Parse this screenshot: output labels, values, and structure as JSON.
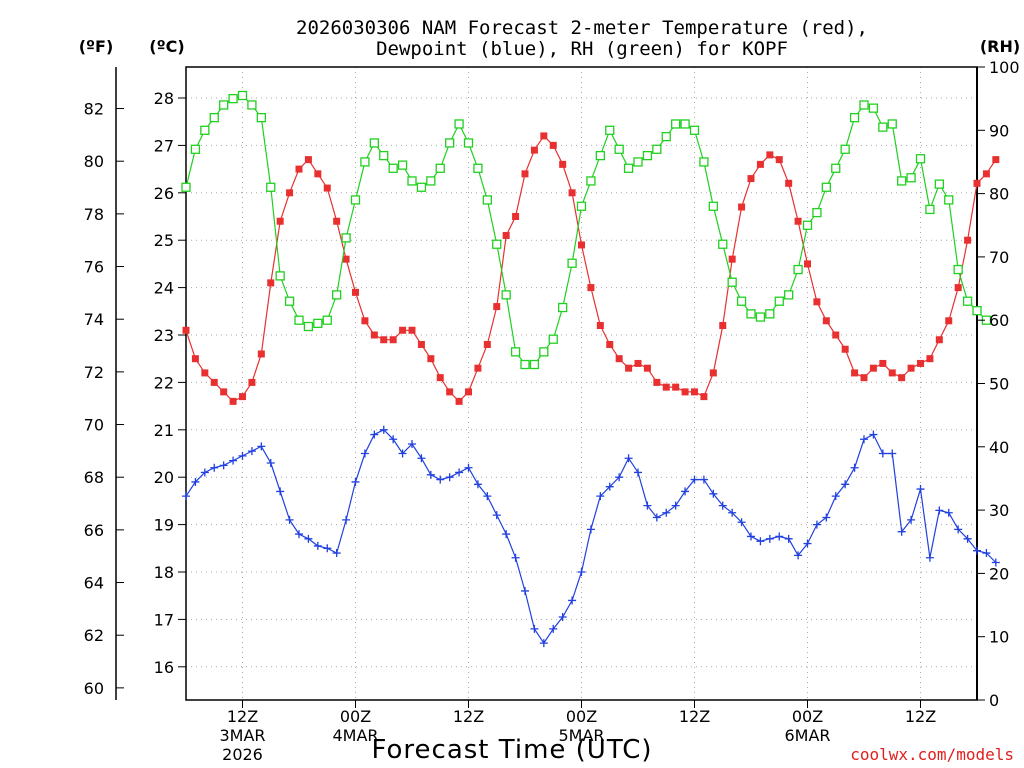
{
  "title_line1": "2026030306 NAM Forecast 2-meter Temperature (red),",
  "title_line2": "Dewpoint (blue), RH (green) for KOPF",
  "unit_f": "(ºF)",
  "unit_c": "(ºC)",
  "unit_rh": "(RH)",
  "xlabel": "Forecast Time (UTC)",
  "credit": "coolwx.com/models",
  "colors": {
    "temperature": "#e83030",
    "dewpoint": "#2040e0",
    "rh": "#20d020",
    "grid": "#aaaaaa"
  },
  "chart_data": {
    "type": "line",
    "x_unit": "forecast hours from 2026-03-03 06Z",
    "x_range": [
      0,
      84
    ],
    "x_ticks": [
      {
        "hour": 6,
        "label": "12Z",
        "sub1": "3MAR",
        "sub2": "2026"
      },
      {
        "hour": 18,
        "label": "00Z",
        "sub1": "4MAR",
        "sub2": ""
      },
      {
        "hour": 30,
        "label": "12Z",
        "sub1": "",
        "sub2": ""
      },
      {
        "hour": 42,
        "label": "00Z",
        "sub1": "5MAR",
        "sub2": ""
      },
      {
        "hour": 54,
        "label": "12Z",
        "sub1": "",
        "sub2": ""
      },
      {
        "hour": 66,
        "label": "00Z",
        "sub1": "6MAR",
        "sub2": ""
      },
      {
        "hour": 78,
        "label": "12Z",
        "sub1": "",
        "sub2": ""
      }
    ],
    "y_left_c": {
      "label": "(ºC)",
      "range": [
        15.5,
        28.5
      ],
      "ticks": [
        16,
        17,
        18,
        19,
        20,
        21,
        22,
        23,
        24,
        25,
        26,
        27,
        28
      ]
    },
    "y_left_f": {
      "label": "(ºF)",
      "ticks": [
        60,
        62,
        64,
        66,
        68,
        70,
        72,
        74,
        76,
        78,
        80,
        82
      ]
    },
    "y_right_rh": {
      "label": "(RH)",
      "range": [
        0,
        100
      ],
      "ticks": [
        0,
        10,
        20,
        30,
        40,
        50,
        60,
        70,
        80,
        90,
        100
      ]
    },
    "grid": true,
    "series": [
      {
        "key": "temperature",
        "axis": "celsius",
        "marker": "filled-square",
        "values": [
          23.1,
          22.5,
          22.2,
          22.0,
          21.8,
          21.6,
          21.7,
          22.0,
          22.6,
          24.1,
          25.4,
          26.0,
          26.5,
          26.7,
          26.4,
          26.1,
          25.4,
          24.6,
          23.9,
          23.3,
          23.0,
          22.9,
          22.9,
          23.1,
          23.1,
          22.8,
          22.5,
          22.1,
          21.8,
          21.6,
          21.8,
          22.3,
          22.8,
          23.6,
          25.1,
          25.5,
          26.4,
          26.9,
          27.2,
          27.0,
          26.6,
          26.0,
          24.9,
          24.0,
          23.2,
          22.8,
          22.5,
          22.3,
          22.4,
          22.3,
          22.0,
          21.9,
          21.9,
          21.8,
          21.8,
          21.7,
          22.2,
          23.2,
          24.6,
          25.7,
          26.3,
          26.6,
          26.8,
          26.7,
          26.2,
          25.4,
          24.5,
          23.7,
          23.3,
          23.0,
          22.7,
          22.2,
          22.1,
          22.3,
          22.4,
          22.2,
          22.1,
          22.3,
          22.4,
          22.5,
          22.9,
          23.3,
          24.0,
          25.0,
          26.2,
          26.4,
          26.7
        ]
      },
      {
        "key": "dewpoint",
        "axis": "celsius",
        "marker": "plus",
        "values": [
          19.6,
          19.9,
          20.1,
          20.2,
          20.25,
          20.35,
          20.45,
          20.55,
          20.65,
          20.3,
          19.7,
          19.1,
          18.8,
          18.7,
          18.55,
          18.5,
          18.4,
          19.1,
          19.9,
          20.5,
          20.9,
          21.0,
          20.8,
          20.5,
          20.7,
          20.4,
          20.05,
          19.95,
          20.0,
          20.1,
          20.2,
          19.85,
          19.6,
          19.2,
          18.8,
          18.3,
          17.6,
          16.8,
          16.5,
          16.8,
          17.05,
          17.4,
          18.0,
          18.9,
          19.6,
          19.8,
          20.0,
          20.4,
          20.1,
          19.4,
          19.15,
          19.25,
          19.4,
          19.7,
          19.95,
          19.95,
          19.65,
          19.4,
          19.25,
          19.05,
          18.75,
          18.65,
          18.7,
          18.75,
          18.7,
          18.35,
          18.6,
          19.0,
          19.15,
          19.6,
          19.85,
          20.2,
          20.8,
          20.9,
          20.5,
          20.5,
          18.85,
          19.1,
          19.75,
          18.3,
          19.3,
          19.25,
          18.9,
          18.7,
          18.45,
          18.4,
          18.2
        ]
      },
      {
        "key": "rh",
        "axis": "rh",
        "marker": "open-square",
        "values": [
          81,
          87,
          90,
          92,
          94,
          95,
          95.5,
          94,
          92,
          81,
          67,
          63,
          60,
          59,
          59.5,
          60,
          64,
          73,
          79,
          85,
          88,
          86,
          84,
          84.5,
          82,
          81,
          82,
          84,
          88,
          91,
          88,
          84,
          79,
          72,
          64,
          55,
          53,
          53,
          55,
          57,
          62,
          69,
          78,
          82,
          86,
          90,
          87,
          84,
          85,
          86,
          87,
          89,
          91,
          91,
          90,
          85,
          78,
          72,
          66,
          63,
          61,
          60.5,
          61,
          63,
          64,
          68,
          75,
          77,
          81,
          84,
          87,
          92,
          94,
          93.5,
          90.5,
          91,
          82,
          82.5,
          85.5,
          77.5,
          81.5,
          79,
          68,
          63,
          61.5,
          60
        ]
      }
    ]
  }
}
